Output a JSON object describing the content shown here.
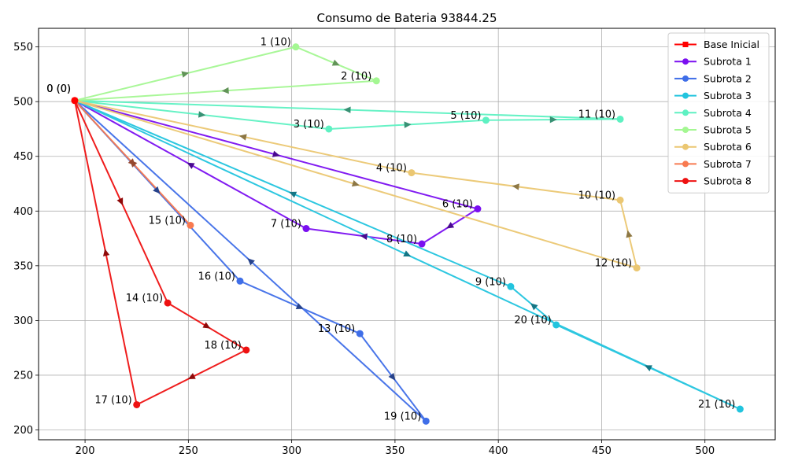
{
  "chart_data": {
    "type": "line",
    "title": "Consumo de Bateria 93844.25",
    "xlabel": "",
    "ylabel": "",
    "xlim": [
      177.5,
      534
    ],
    "ylim": [
      191,
      567
    ],
    "xticks": [
      200,
      250,
      300,
      350,
      400,
      450,
      500
    ],
    "yticks": [
      200,
      250,
      300,
      350,
      400,
      450,
      500,
      550
    ],
    "grid": true,
    "legend_position": "top-right",
    "base": {
      "name": "Base Inicial",
      "x": 195,
      "y": 501,
      "color": "#ff0000",
      "labels": [
        "0 (0)",
        "0 (0)"
      ]
    },
    "points": [
      {
        "id": 1,
        "label": "1 (10)",
        "x": 302,
        "y": 550
      },
      {
        "id": 2,
        "label": "2 (10)",
        "x": 341,
        "y": 519
      },
      {
        "id": 3,
        "label": "3 (10)",
        "x": 318,
        "y": 475
      },
      {
        "id": 4,
        "label": "4 (10)",
        "x": 358,
        "y": 435
      },
      {
        "id": 5,
        "label": "5 (10)",
        "x": 394,
        "y": 483
      },
      {
        "id": 6,
        "label": "6 (10)",
        "x": 390,
        "y": 402
      },
      {
        "id": 7,
        "label": "7 (10)",
        "x": 307,
        "y": 384
      },
      {
        "id": 8,
        "label": "8 (10)",
        "x": 363,
        "y": 370
      },
      {
        "id": 9,
        "label": "9 (10)",
        "x": 406,
        "y": 331
      },
      {
        "id": 10,
        "label": "10 (10)",
        "x": 459,
        "y": 410
      },
      {
        "id": 11,
        "label": "11 (10)",
        "x": 459,
        "y": 484
      },
      {
        "id": 12,
        "label": "12 (10)",
        "x": 467,
        "y": 348
      },
      {
        "id": 13,
        "label": "13 (10)",
        "x": 333,
        "y": 288
      },
      {
        "id": 14,
        "label": "14 (10)",
        "x": 240,
        "y": 316
      },
      {
        "id": 15,
        "label": "15 (10)",
        "x": 251,
        "y": 387
      },
      {
        "id": 16,
        "label": "16 (10)",
        "x": 275,
        "y": 336
      },
      {
        "id": 17,
        "label": "17 (10)",
        "x": 225,
        "y": 223
      },
      {
        "id": 18,
        "label": "18 (10)",
        "x": 278,
        "y": 273
      },
      {
        "id": 19,
        "label": "19 (10)",
        "x": 365,
        "y": 208
      },
      {
        "id": 20,
        "label": "20 (10)",
        "x": 428,
        "y": 296
      },
      {
        "id": 21,
        "label": "21 (10)",
        "x": 517,
        "y": 219
      }
    ],
    "series": [
      {
        "name": "Subrota 1",
        "color": "#7a0ff0",
        "route": [
          6,
          8,
          7
        ]
      },
      {
        "name": "Subrota 2",
        "color": "#3f6ee8",
        "route": [
          16,
          13,
          19
        ]
      },
      {
        "name": "Subrota 3",
        "color": "#22c4de",
        "route": [
          21,
          20,
          9
        ]
      },
      {
        "name": "Subrota 4",
        "color": "#5ef1c2",
        "route": [
          3,
          5,
          11
        ]
      },
      {
        "name": "Subrota 5",
        "color": "#a4f792",
        "route": [
          1,
          2
        ]
      },
      {
        "name": "Subrota 6",
        "color": "#ebc772",
        "route": [
          12,
          10,
          4
        ]
      },
      {
        "name": "Subrota 7",
        "color": "#f87a50",
        "route": [
          15
        ]
      },
      {
        "name": "Subrota 8",
        "color": "#ee1111",
        "route": [
          14,
          18,
          17
        ]
      }
    ]
  }
}
